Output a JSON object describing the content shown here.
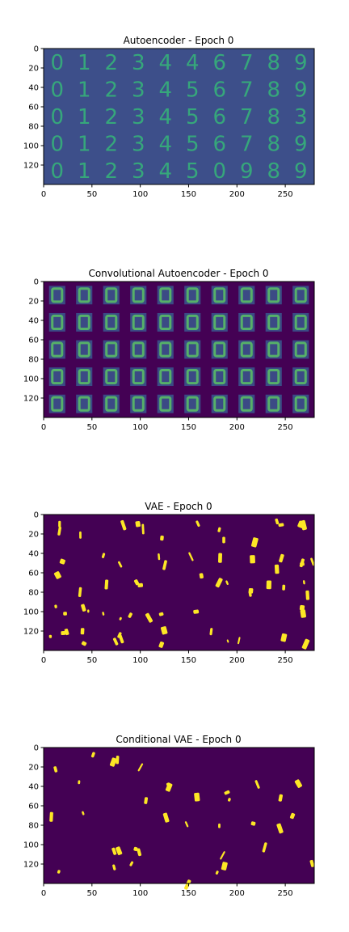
{
  "colors": {
    "bg_ae": "#3d4f8a",
    "digit_ae": "#35b779",
    "bg_cae": "#440154",
    "tile_cae": "#3b528b",
    "digit_cae": "#5ec962",
    "bg_vae": "#440154",
    "digit_vae": "#fde725",
    "trace_vae": "#21918c"
  },
  "chart_data": [
    {
      "type": "heatmap",
      "title": "Autoencoder - Epoch 0",
      "xlim": [
        0,
        280
      ],
      "ylim": [
        140,
        0
      ],
      "xticks": [
        0,
        50,
        100,
        150,
        200,
        250
      ],
      "yticks": [
        0,
        20,
        40,
        60,
        80,
        100,
        120
      ],
      "grid": false,
      "digit_rows": [
        [
          "0",
          "1",
          "2",
          "3",
          "4",
          "4",
          "6",
          "7",
          "8",
          "9"
        ],
        [
          "0",
          "1",
          "2",
          "3",
          "4",
          "5",
          "6",
          "7",
          "8",
          "9"
        ],
        [
          "0",
          "1",
          "2",
          "3",
          "4",
          "5",
          "6",
          "7",
          "8",
          "3"
        ],
        [
          "0",
          "1",
          "2",
          "3",
          "4",
          "5",
          "6",
          "7",
          "8",
          "9"
        ],
        [
          "0",
          "1",
          "2",
          "3",
          "4",
          "5",
          "0",
          "9",
          "8",
          "9"
        ]
      ]
    },
    {
      "type": "heatmap",
      "title": "Convolutional Autoencoder - Epoch 0",
      "xlim": [
        0,
        280
      ],
      "ylim": [
        140,
        0
      ],
      "xticks": [
        0,
        50,
        100,
        150,
        200,
        250
      ],
      "yticks": [
        0,
        20,
        40,
        60,
        80,
        100,
        120
      ],
      "grid": false
    },
    {
      "type": "heatmap",
      "title": "VAE - Epoch 0",
      "xlim": [
        0,
        280
      ],
      "ylim": [
        140,
        0
      ],
      "xticks": [
        0,
        50,
        100,
        150,
        200,
        250
      ],
      "yticks": [
        0,
        20,
        40,
        60,
        80,
        100,
        120
      ],
      "grid": false
    },
    {
      "type": "heatmap",
      "title": "Conditional VAE - Epoch 0",
      "xlim": [
        0,
        280
      ],
      "ylim": [
        140,
        0
      ],
      "xticks": [
        0,
        50,
        100,
        150,
        200,
        250
      ],
      "yticks": [
        0,
        20,
        40,
        60,
        80,
        100,
        120
      ],
      "grid": false
    }
  ]
}
